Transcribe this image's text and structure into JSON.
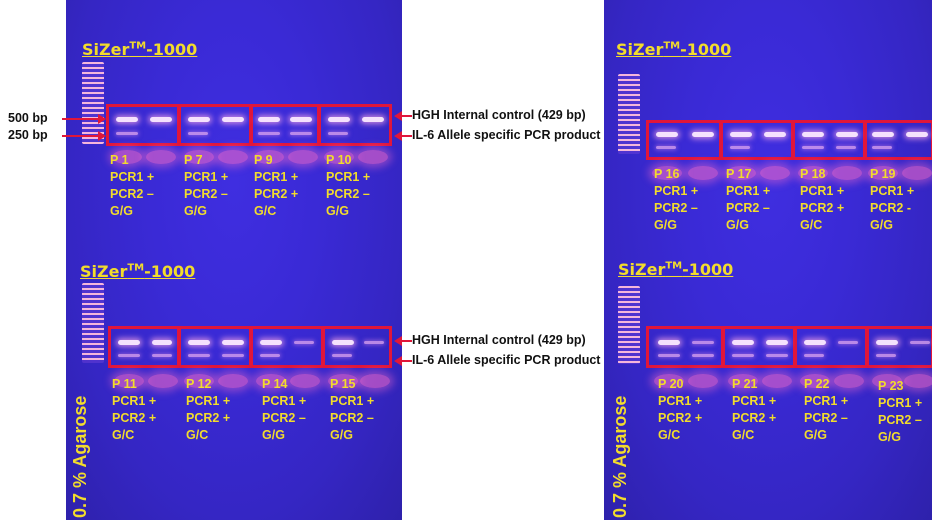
{
  "marker": {
    "base": "SiZer",
    "sup": "TM",
    "suffix": "-1000"
  },
  "agarose": "0.7 % Agarose",
  "size_labels": {
    "bp500": "500 bp",
    "bp250": "250 bp"
  },
  "annotations": {
    "hgh": "HGH Internal control (429 bp)",
    "il6": "IL-6 Allele specific PCR product"
  },
  "colors": {
    "gel": "#3a2ad6",
    "box": "#e0163a",
    "label": "#f2dc2c"
  },
  "gels": {
    "left_top": [
      {
        "sample": "P 1",
        "pcr1": "PCR1 +",
        "pcr2": "PCR2 –",
        "genotype": "G/G"
      },
      {
        "sample": "P 7",
        "pcr1": "PCR1 +",
        "pcr2": "PCR2 –",
        "genotype": "G/G"
      },
      {
        "sample": "P 9",
        "pcr1": "PCR1 +",
        "pcr2": "PCR2 +",
        "genotype": "G/C"
      },
      {
        "sample": "P 10",
        "pcr1": "PCR1 +",
        "pcr2": "PCR2 –",
        "genotype": "G/G"
      }
    ],
    "left_bottom": [
      {
        "sample": "P 11",
        "pcr1": "PCR1 +",
        "pcr2": "PCR2 +",
        "genotype": "G/C"
      },
      {
        "sample": "P 12",
        "pcr1": "PCR1 +",
        "pcr2": "PCR2 +",
        "genotype": "G/C"
      },
      {
        "sample": "P 14",
        "pcr1": "PCR1 +",
        "pcr2": "PCR2 –",
        "genotype": "G/G"
      },
      {
        "sample": "P 15",
        "pcr1": "PCR1 +",
        "pcr2": "PCR2 –",
        "genotype": "G/G"
      }
    ],
    "right_top": [
      {
        "sample": "P 16",
        "pcr1": "PCR1 +",
        "pcr2": "PCR2 –",
        "genotype": "G/G"
      },
      {
        "sample": "P 17",
        "pcr1": "PCR1 +",
        "pcr2": "PCR2 –",
        "genotype": "G/G"
      },
      {
        "sample": "P 18",
        "pcr1": "PCR1 +",
        "pcr2": "PCR2 +",
        "genotype": "G/C"
      },
      {
        "sample": "P 19",
        "pcr1": "PCR1 +",
        "pcr2": "PCR2 -",
        "genotype": "G/G"
      }
    ],
    "right_bottom": [
      {
        "sample": "P 20",
        "pcr1": "PCR1 +",
        "pcr2": "PCR2 +",
        "genotype": "G/C"
      },
      {
        "sample": "P 21",
        "pcr1": "PCR1 +",
        "pcr2": "PCR2 +",
        "genotype": "G/C"
      },
      {
        "sample": "P 22",
        "pcr1": "PCR1 +",
        "pcr2": "PCR2 –",
        "genotype": "G/G"
      },
      {
        "sample": "P 23",
        "pcr1": "PCR1 +",
        "pcr2": "PCR2 –",
        "genotype": "G/G"
      }
    ]
  }
}
